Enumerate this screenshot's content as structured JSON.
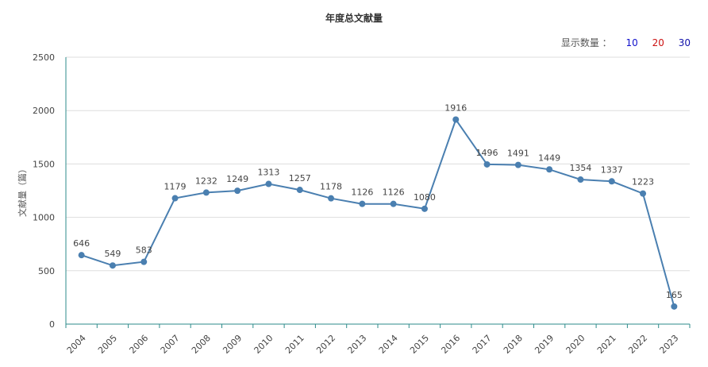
{
  "colors": {
    "line": "#4a7fb0",
    "axis": "#2e8b8b",
    "grid": "#dddddd",
    "opt10": "#1111cc",
    "opt20": "#cc1111",
    "opt30": "#1111aa"
  },
  "selector": {
    "label": "显示数量 ：",
    "options": [
      "10",
      "20",
      "30"
    ]
  },
  "chart_data": {
    "type": "line",
    "title": "年度总文献量",
    "ylabel": "文献量（篇）",
    "xlabel": "",
    "x": [
      "2004",
      "2005",
      "2006",
      "2007",
      "2008",
      "2009",
      "2010",
      "2011",
      "2012",
      "2013",
      "2014",
      "2015",
      "2016",
      "2017",
      "2018",
      "2019",
      "2020",
      "2021",
      "2022",
      "2023"
    ],
    "values": [
      646,
      549,
      583,
      1179,
      1232,
      1249,
      1313,
      1257,
      1178,
      1126,
      1126,
      1080,
      1916,
      1496,
      1491,
      1449,
      1354,
      1337,
      1223,
      165
    ],
    "ylim": [
      0,
      2500
    ],
    "yticks": [
      0,
      500,
      1000,
      1500,
      2000,
      2500
    ],
    "grid": true
  }
}
